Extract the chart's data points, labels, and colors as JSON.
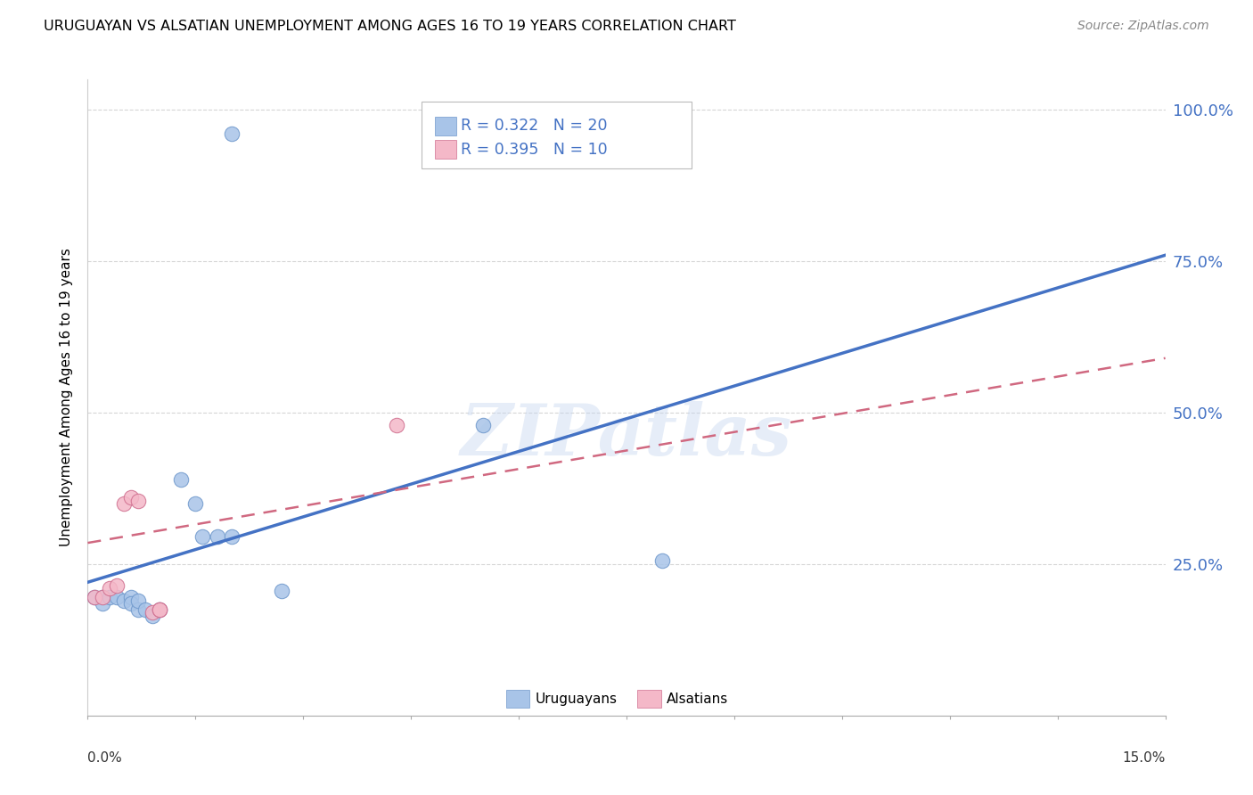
{
  "title": "URUGUAYAN VS ALSATIAN UNEMPLOYMENT AMONG AGES 16 TO 19 YEARS CORRELATION CHART",
  "source": "Source: ZipAtlas.com",
  "ylabel": "Unemployment Among Ages 16 to 19 years",
  "ytick_labels": [
    "100.0%",
    "75.0%",
    "50.0%",
    "25.0%"
  ],
  "ytick_values": [
    1.0,
    0.75,
    0.5,
    0.25
  ],
  "xlim": [
    0.0,
    0.15
  ],
  "ylim": [
    0.0,
    1.05
  ],
  "uruguayan_color": "#a8c4e8",
  "alsatian_color": "#f4b8c8",
  "uruguayan_line_color": "#4472c4",
  "alsatian_line_color": "#d06880",
  "watermark_text": "ZIPatlas",
  "uruguayan_points": [
    [
      0.001,
      0.195
    ],
    [
      0.002,
      0.195
    ],
    [
      0.002,
      0.185
    ],
    [
      0.003,
      0.195
    ],
    [
      0.004,
      0.195
    ],
    [
      0.005,
      0.19
    ],
    [
      0.006,
      0.195
    ],
    [
      0.006,
      0.185
    ],
    [
      0.007,
      0.175
    ],
    [
      0.007,
      0.19
    ],
    [
      0.008,
      0.175
    ],
    [
      0.009,
      0.165
    ],
    [
      0.01,
      0.175
    ],
    [
      0.013,
      0.39
    ],
    [
      0.015,
      0.35
    ],
    [
      0.016,
      0.295
    ],
    [
      0.018,
      0.295
    ],
    [
      0.02,
      0.295
    ],
    [
      0.027,
      0.205
    ],
    [
      0.02,
      0.96
    ],
    [
      0.08,
      0.255
    ],
    [
      0.055,
      0.48
    ]
  ],
  "alsatian_points": [
    [
      0.001,
      0.195
    ],
    [
      0.002,
      0.195
    ],
    [
      0.003,
      0.21
    ],
    [
      0.004,
      0.215
    ],
    [
      0.005,
      0.35
    ],
    [
      0.006,
      0.36
    ],
    [
      0.007,
      0.355
    ],
    [
      0.009,
      0.17
    ],
    [
      0.01,
      0.175
    ],
    [
      0.043,
      0.48
    ],
    [
      0.01,
      0.175
    ]
  ],
  "uruguayan_line_y0": 0.22,
  "uruguayan_line_y1": 0.76,
  "alsatian_line_y0": 0.285,
  "alsatian_line_y1": 0.59
}
